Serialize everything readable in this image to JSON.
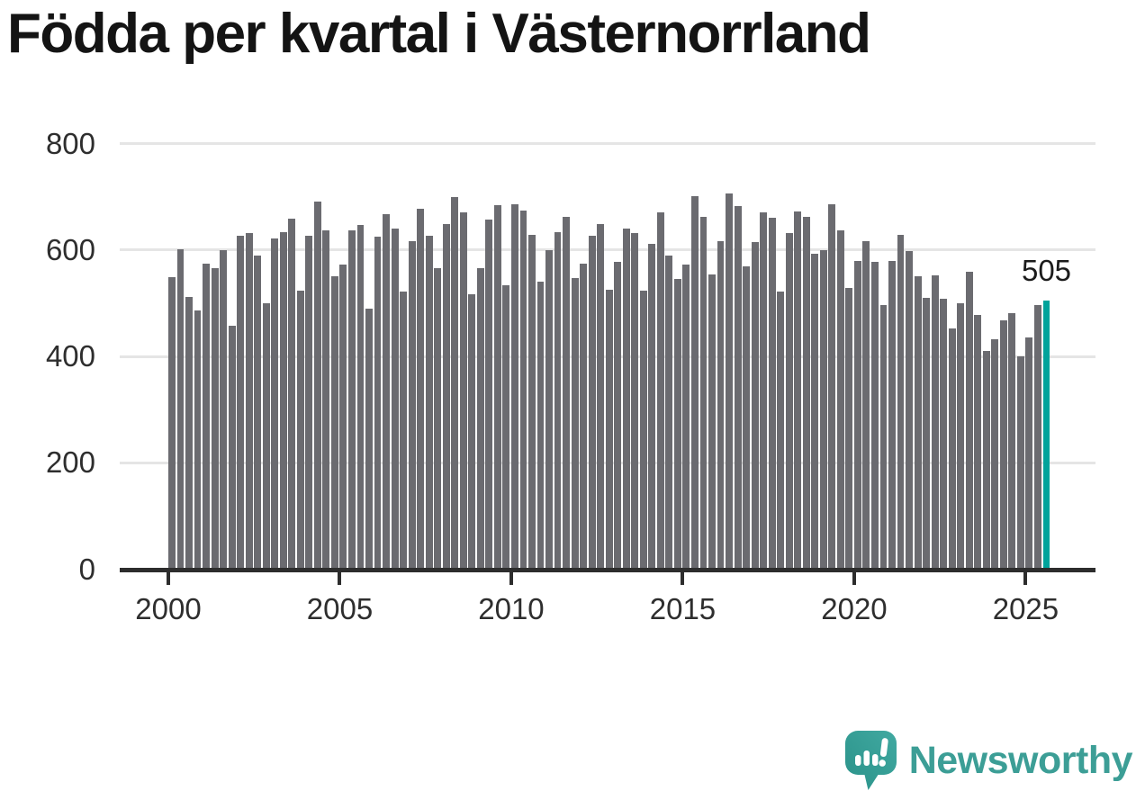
{
  "title": "Födda per kvartal i Västernorrland",
  "chart_data": {
    "type": "bar",
    "title": "Födda per kvartal i Västernorrland",
    "x_first_quarter": "2000 Q1",
    "x_last_quarter": "2025 Q3",
    "quarters_per_year": 4,
    "start_year": 2000,
    "values": [
      548,
      602,
      512,
      486,
      574,
      566,
      600,
      458,
      627,
      631,
      590,
      500,
      621,
      633,
      659,
      524,
      626,
      691,
      636,
      551,
      573,
      637,
      647,
      490,
      625,
      668,
      641,
      522,
      617,
      677,
      626,
      565,
      648,
      700,
      670,
      517,
      565,
      657,
      684,
      534,
      686,
      674,
      629,
      541,
      599,
      634,
      663,
      547,
      575,
      626,
      649,
      526,
      578,
      640,
      632,
      523,
      611,
      670,
      590,
      545,
      573,
      701,
      662,
      554,
      616,
      706,
      682,
      569,
      615,
      671,
      660,
      522,
      632,
      672,
      663,
      593,
      600,
      686,
      636,
      528,
      579,
      616,
      578,
      496,
      580,
      629,
      598,
      551,
      510,
      553,
      509,
      452,
      500,
      559,
      478,
      410,
      432,
      467,
      482,
      400,
      436,
      497,
      505
    ],
    "x_tick_labels": [
      "2000",
      "2005",
      "2010",
      "2015",
      "2020",
      "2025"
    ],
    "x_tick_years": [
      2000,
      2005,
      2010,
      2015,
      2020,
      2025
    ],
    "y_tick_labels": [
      "0",
      "200",
      "400",
      "600",
      "800"
    ],
    "y_tick_values": [
      0,
      200,
      400,
      600,
      800
    ],
    "ylim": [
      0,
      800
    ],
    "grid": "horizontal",
    "legend": "none",
    "bar_color": "#6b6b70",
    "highlight_color": "#00a39b",
    "highlighted_bar": "last",
    "annotation": {
      "text": "505",
      "applies_to": "last-bar"
    }
  },
  "footer": {
    "brand": "Newsworthy",
    "brand_color": "#3c9e96",
    "logo_icon": "newsworthy-speech-bubble-bar-chart-icon"
  }
}
